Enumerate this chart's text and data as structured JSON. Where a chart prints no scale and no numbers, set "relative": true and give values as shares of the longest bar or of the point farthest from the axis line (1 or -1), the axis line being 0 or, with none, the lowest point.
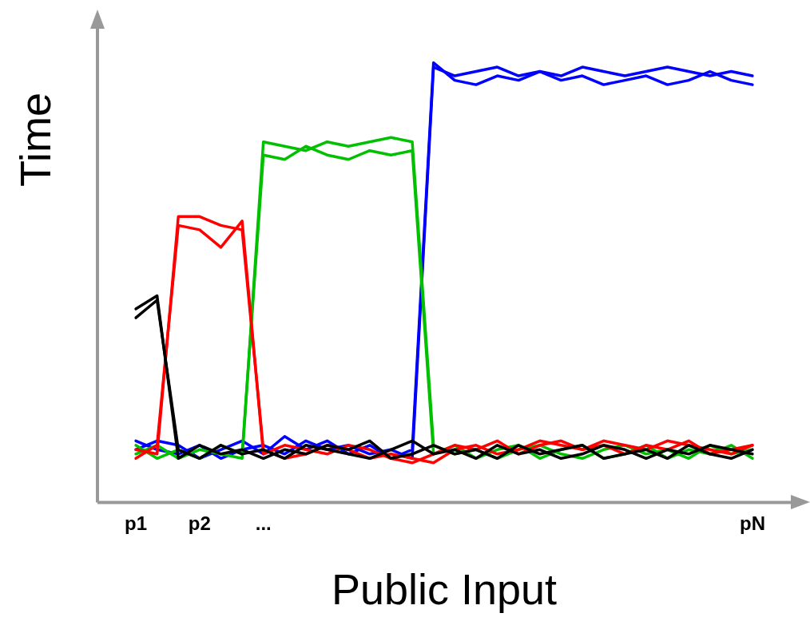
{
  "chart_data": {
    "type": "line",
    "relative": true,
    "xlabel": "Public Input",
    "ylabel": "Time",
    "categories": [
      "p1",
      null,
      null,
      "p2",
      null,
      null,
      "...",
      null,
      null,
      null,
      null,
      null,
      null,
      null,
      null,
      null,
      null,
      null,
      null,
      null,
      null,
      null,
      null,
      null,
      null,
      null,
      null,
      null,
      null,
      "pN"
    ],
    "grid": false,
    "legend": false,
    "marker": "none",
    "line_style": "solid",
    "series": [
      {
        "color": "#000000",
        "values": [
          0.42,
          0.46,
          0.12,
          0.1,
          0.13,
          0.11,
          0.12,
          0.1,
          0.13,
          0.12,
          0.11,
          0.1,
          0.12,
          0.14,
          0.11,
          0.12,
          0.1,
          0.13,
          0.11,
          0.12,
          0.1,
          0.11,
          0.13,
          0.12,
          0.1,
          0.12,
          0.11,
          0.13,
          0.12,
          0.11
        ]
      },
      {
        "color": "#000000",
        "values": [
          0.44,
          0.47,
          0.1,
          0.13,
          0.11,
          0.12,
          0.1,
          0.12,
          0.11,
          0.13,
          0.12,
          0.14,
          0.1,
          0.11,
          0.13,
          0.11,
          0.12,
          0.1,
          0.13,
          0.11,
          0.12,
          0.13,
          0.1,
          0.11,
          0.12,
          0.1,
          0.13,
          0.11,
          0.1,
          0.12
        ]
      },
      {
        "color": "#ff0000",
        "values": [
          0.12,
          0.11,
          0.65,
          0.65,
          0.63,
          0.62,
          0.12,
          0.1,
          0.11,
          0.13,
          0.12,
          0.1,
          0.11,
          0.1,
          0.09,
          0.12,
          0.13,
          0.11,
          0.12,
          0.14,
          0.13,
          0.12,
          0.14,
          0.13,
          0.12,
          0.14,
          0.13,
          0.12,
          0.11,
          0.13
        ]
      },
      {
        "color": "#ff0000",
        "values": [
          0.1,
          0.13,
          0.63,
          0.62,
          0.58,
          0.64,
          0.11,
          0.13,
          0.12,
          0.11,
          0.13,
          0.12,
          0.1,
          0.09,
          0.11,
          0.13,
          0.12,
          0.14,
          0.11,
          0.13,
          0.14,
          0.12,
          0.13,
          0.11,
          0.13,
          0.12,
          0.14,
          0.11,
          0.12,
          0.13
        ]
      },
      {
        "color": "#00c000",
        "values": [
          0.11,
          0.13,
          0.1,
          0.12,
          0.11,
          0.1,
          0.82,
          0.81,
          0.8,
          0.82,
          0.81,
          0.82,
          0.83,
          0.82,
          0.13,
          0.11,
          0.12,
          0.1,
          0.12,
          0.13,
          0.11,
          0.1,
          0.12,
          0.13,
          0.11,
          0.12,
          0.1,
          0.13,
          0.11,
          0.12
        ]
      },
      {
        "color": "#00c000",
        "values": [
          0.13,
          0.1,
          0.12,
          0.1,
          0.13,
          0.11,
          0.79,
          0.78,
          0.81,
          0.79,
          0.78,
          0.8,
          0.79,
          0.8,
          0.11,
          0.13,
          0.1,
          0.12,
          0.13,
          0.1,
          0.12,
          0.13,
          0.1,
          0.11,
          0.13,
          0.1,
          0.12,
          0.11,
          0.13,
          0.1
        ]
      },
      {
        "color": "#0000ff",
        "values": [
          0.14,
          0.12,
          0.11,
          0.13,
          0.1,
          0.12,
          0.13,
          0.11,
          0.14,
          0.12,
          0.13,
          0.11,
          0.12,
          0.1,
          0.99,
          0.97,
          0.98,
          0.99,
          0.97,
          0.98,
          0.97,
          0.99,
          0.98,
          0.97,
          0.98,
          0.99,
          0.98,
          0.97,
          0.98,
          0.97
        ]
      },
      {
        "color": "#0000ff",
        "values": [
          0.12,
          0.14,
          0.13,
          0.1,
          0.12,
          0.14,
          0.11,
          0.15,
          0.12,
          0.14,
          0.11,
          0.13,
          0.1,
          0.12,
          1,
          0.96,
          0.95,
          0.97,
          0.96,
          0.98,
          0.96,
          0.97,
          0.95,
          0.96,
          0.97,
          0.95,
          0.96,
          0.98,
          0.96,
          0.95
        ]
      }
    ]
  }
}
